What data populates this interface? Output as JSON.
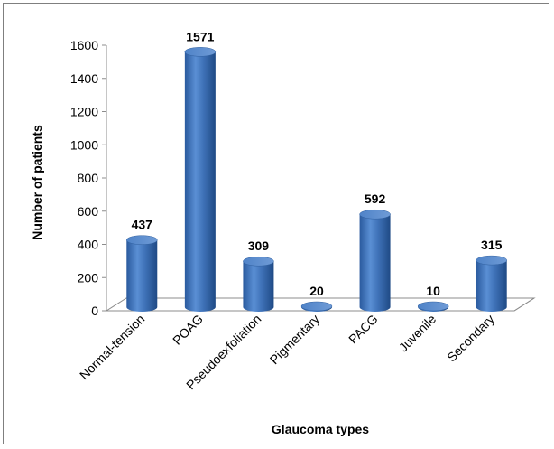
{
  "chart_data": {
    "type": "bar",
    "style": "3d-cylinder",
    "title": "",
    "xlabel": "Glaucoma types",
    "ylabel": "Number of patients",
    "categories": [
      "Normal-tension",
      "POAG",
      "Pseudoexfoliation",
      "Pigmentary",
      "PACG",
      "Juvenile",
      "Secondary"
    ],
    "values": [
      437,
      1571,
      309,
      20,
      592,
      10,
      315
    ],
    "data_labels": [
      "437",
      "1571",
      "309",
      "20",
      "592",
      "10",
      "315"
    ],
    "yticks": [
      "0",
      "200",
      "400",
      "600",
      "800",
      "1000",
      "1200",
      "1400",
      "1600"
    ],
    "ylim": [
      0,
      1600
    ],
    "grid": false,
    "legend": "none",
    "colors": {
      "bar": "#3f72b8",
      "bar_dark": "#1f4a85",
      "bar_light": "#7aa6dc",
      "axis": "#8c8c8c"
    }
  }
}
